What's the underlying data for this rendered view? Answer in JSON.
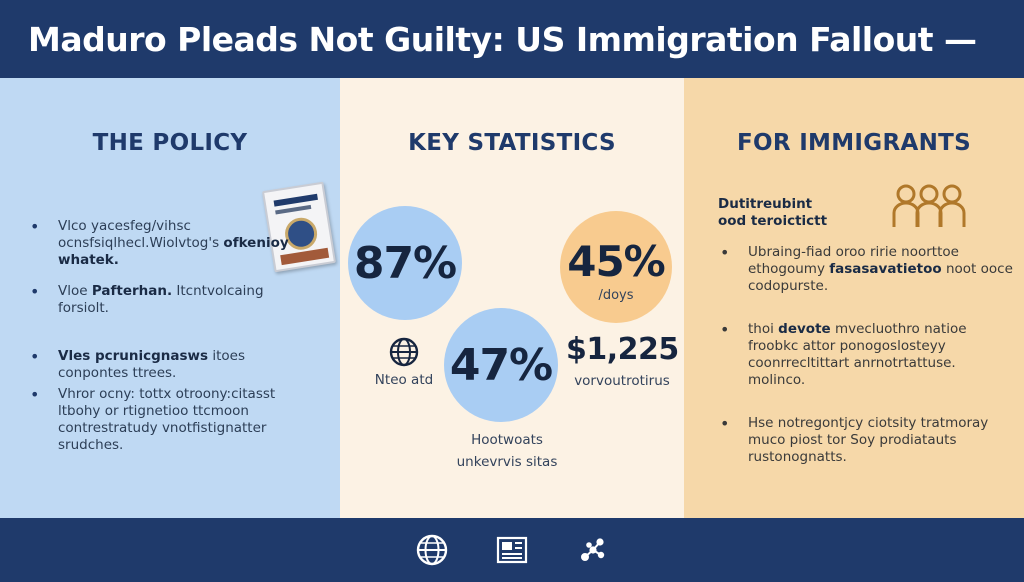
{
  "header": {
    "title": "Maduro Pleads Not Guilty: US Immigration Fallout —"
  },
  "policy": {
    "title": "THE POLICY",
    "bullets": [
      {
        "lead": "",
        "text": "Vlco yacesfeg/vihsc ocnsfsiqlhecl.Wiolvtog's",
        "bold_tail": "ofkenioy whatek."
      },
      {
        "lead": "Vloe",
        "bold": "Pafterhan.",
        "text": "Itcntvolcaing forsiolt."
      },
      {
        "lead": "",
        "bold": "Vles pcrunicgnasws",
        "text": "itoes conpontes ttrees."
      },
      {
        "lead": "",
        "bold": "",
        "text": "Vhror ocny: tottx otroony:citasst ltbohy or rtignetioo ttcmoon contrestratudy vnotfistignatter srudches."
      }
    ],
    "doc_icon": "passport-document-icon"
  },
  "stats": {
    "title": "KEY STATISTICS",
    "items": [
      {
        "value": "87%",
        "color": "#a9cdf3"
      },
      {
        "value": "45%",
        "sub": "/doys",
        "color": "#f8cb8f"
      },
      {
        "value": "47%",
        "color": "#a9cdf3"
      },
      {
        "value": "$1,225",
        "sub": "vorvoutrotirus"
      }
    ],
    "globe_label": "Nteo atd",
    "bottom_label_line1": "Hootwoats",
    "bottom_label_line2": "unkevrvis sitas"
  },
  "immigrants": {
    "title": "FOR IMMIGRANTS",
    "heading_line1": "Dutitreubint",
    "heading_line2": "ood teroictictt",
    "people_icon": "people-group-icon",
    "bullets": [
      {
        "text": "Ubraing-fiad oroo ririe noorttoe ethogoumy",
        "bold": "fasasavatietoo",
        "tail": "noot ooce codopurste."
      },
      {
        "lead": "thoi",
        "bold": "devote",
        "text": "mvecluothro natioe froobkc attor ponogoslosteyy coonrrecltittart anrnotrtattuse. molinco."
      },
      {
        "text": "Hse notregontjcy ciotsity tratmoray muco piost tor Soy prodiatauts rustonognatts."
      }
    ]
  },
  "footer": {
    "icons": [
      "globe-icon",
      "newspaper-icon",
      "network-icon"
    ]
  }
}
